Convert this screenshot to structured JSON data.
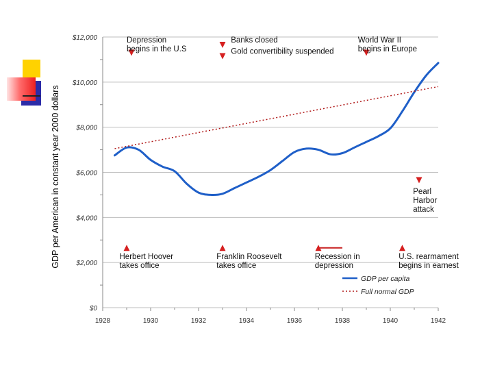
{
  "colors": {
    "series": "#1f5fc8",
    "trend": "#b01818",
    "marker": "#d62020",
    "grid": "#bdbdbd",
    "axis_text": "#333333",
    "deco_yellow": "#ffd200",
    "deco_blue": "#2c2ca8",
    "deco_red": "#ee2020"
  },
  "chart_data": {
    "type": "line",
    "title": "",
    "xlabel": "",
    "ylabel": "GDP per American in constant year 2000 dollars",
    "xlim": [
      1928,
      1942
    ],
    "ylim": [
      0,
      12000
    ],
    "x_ticks": [
      1928,
      1930,
      1932,
      1934,
      1936,
      1938,
      1940,
      1942
    ],
    "x_tick_labels": [
      "1928",
      "1930",
      "1932",
      "1934",
      "1936",
      "1938",
      "1940",
      "1942"
    ],
    "y_ticks": [
      0,
      2000,
      4000,
      6000,
      8000,
      10000,
      12000
    ],
    "y_tick_labels": [
      "$0",
      "$2,000",
      "$4,000",
      "$6,000",
      "$8,000",
      "$10,000",
      "$12,000"
    ],
    "grid": true,
    "series": [
      {
        "name": "GDP per capita",
        "style": "solid",
        "x": [
          1928.5,
          1929.0,
          1929.5,
          1930.0,
          1930.5,
          1931.0,
          1931.5,
          1932.0,
          1932.5,
          1933.0,
          1933.5,
          1934.0,
          1934.5,
          1935.0,
          1935.5,
          1936.0,
          1936.5,
          1937.0,
          1937.5,
          1938.0,
          1938.5,
          1939.0,
          1939.5,
          1940.0,
          1940.5,
          1941.0,
          1941.5,
          1942.0
        ],
        "values": [
          6750,
          7100,
          7000,
          6550,
          6250,
          6050,
          5500,
          5100,
          5000,
          5050,
          5300,
          5550,
          5800,
          6100,
          6500,
          6900,
          7050,
          7000,
          6800,
          6850,
          7100,
          7350,
          7600,
          7950,
          8700,
          9550,
          10300,
          10850
        ]
      },
      {
        "name": "Full normal GDP",
        "style": "dotted",
        "x": [
          1928.5,
          1942.0
        ],
        "values": [
          7050,
          9800
        ]
      }
    ],
    "legend": "bottom-right",
    "annotations": [
      {
        "lines": [
          "Depression",
          "begins in the U.S"
        ],
        "marker": "down",
        "x": 1929.2,
        "y_val": 11300,
        "text_x": 1929.0,
        "text_val": 11750
      },
      {
        "lines": [
          "Banks closed"
        ],
        "marker": "down",
        "x": 1933.0,
        "y_val": 11650,
        "text_x": 1933.35,
        "text_val": 11750
      },
      {
        "lines": [
          "Gold convertibility suspended"
        ],
        "marker": "down",
        "x": 1933.0,
        "y_val": 11150,
        "text_x": 1933.35,
        "text_val": 11250
      },
      {
        "lines": [
          "World War II",
          "begins in Europe"
        ],
        "marker": "down",
        "x": 1939.0,
        "y_val": 11300,
        "text_x": 1938.65,
        "text_val": 11750
      },
      {
        "lines": [
          "Pearl",
          "Harbor",
          "attack"
        ],
        "marker": "down",
        "x": 1941.2,
        "y_val": 5650,
        "text_x": 1940.95,
        "text_val": 5050
      },
      {
        "lines": [
          "Herbert Hoover",
          "takes office"
        ],
        "marker": "up",
        "x": 1929.0,
        "y_val": 2650,
        "text_x": 1928.7,
        "text_val": 2150
      },
      {
        "lines": [
          "Franklin Roosevelt",
          "takes office"
        ],
        "marker": "up",
        "x": 1933.0,
        "y_val": 2650,
        "text_x": 1932.75,
        "text_val": 2150
      },
      {
        "lines": [
          "Recession in",
          "depression"
        ],
        "marker": "up",
        "x": 1937.0,
        "y_val": 2650,
        "text_x": 1936.85,
        "text_val": 2150
      },
      {
        "lines": [
          "U.S. rearmament",
          "begins in earnest"
        ],
        "marker": "up",
        "x": 1940.5,
        "y_val": 2650,
        "text_x": 1940.35,
        "text_val": 2150
      }
    ],
    "recession_span": {
      "x_start": 1937.0,
      "x_end": 1938.0,
      "y_val": 2650
    }
  }
}
